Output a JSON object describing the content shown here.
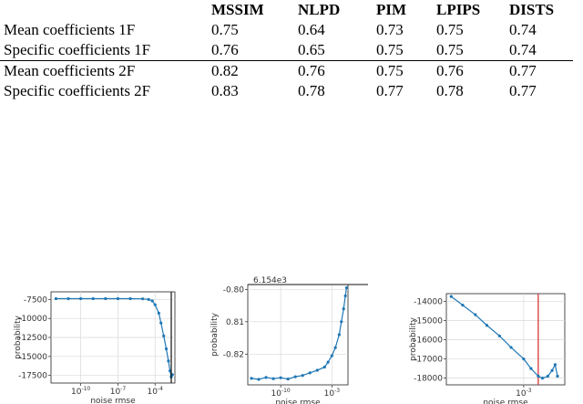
{
  "table": {
    "headers": [
      "",
      "MSSIM",
      "NLPD",
      "PIM",
      "LPIPS",
      "DISTS"
    ],
    "rows": [
      {
        "label": "Mean coefficients 1F",
        "values": [
          "0.75",
          "0.64",
          "0.73",
          "0.75",
          "0.74"
        ]
      },
      {
        "label": "Specific coefficients 1F",
        "values": [
          "0.76",
          "0.65",
          "0.75",
          "0.75",
          "0.74"
        ]
      },
      {
        "label": "Mean coefficients 2F",
        "values": [
          "0.82",
          "0.76",
          "0.75",
          "0.76",
          "0.77"
        ]
      },
      {
        "label": "Specific coefficients 2F",
        "values": [
          "0.83",
          "0.78",
          "0.77",
          "0.78",
          "0.77"
        ]
      }
    ]
  },
  "chart_data": [
    {
      "type": "scatter",
      "xlabel": "noise rmse",
      "ylabel": "probability",
      "xscale": "log",
      "grid": true,
      "xticks": [
        "10^-10",
        "10^-7",
        "10^-4"
      ],
      "yticks": [
        "-7500",
        "-10000",
        "-12500",
        "-15000",
        "-17500"
      ],
      "ylim": [
        -18500,
        -6500
      ],
      "series": [
        {
          "color": "#1f77b4",
          "x": [
            1e-12,
            1e-11,
            1e-10,
            1e-09,
            1e-08,
            1e-07,
            1e-06,
            1e-05,
            3e-05,
            6e-05,
            0.0001,
            0.0002,
            0.0003,
            0.0005,
            0.0008,
            0.0012,
            0.0016,
            0.002,
            0.0025
          ],
          "y": [
            -7400,
            -7400,
            -7400,
            -7400,
            -7400,
            -7400,
            -7400,
            -7420,
            -7500,
            -7700,
            -8200,
            -9300,
            -10600,
            -12300,
            -14000,
            -15600,
            -16900,
            -17700,
            -17400
          ]
        }
      ]
    },
    {
      "type": "scatter",
      "xlabel": "noise rmse",
      "ylabel": "probability",
      "xscale": "log",
      "grid": true,
      "offset_text": "6.154e3",
      "xticks": [
        "10^-10",
        "10^-3"
      ],
      "yticks": [
        "-0.80",
        "0.81",
        "-0.82"
      ],
      "ylim": [
        -0.8295,
        -0.7985
      ],
      "series": [
        {
          "color": "#1f77b4",
          "x": [
            1e-14,
            1e-13,
            1e-12,
            1e-11,
            1e-10,
            1e-09,
            1e-08,
            1e-07,
            1e-06,
            1e-05,
            0.0001,
            0.0003,
            0.001,
            0.003,
            0.01,
            0.02,
            0.04,
            0.07,
            0.1
          ],
          "y": [
            -0.8275,
            -0.8278,
            -0.8272,
            -0.8276,
            -0.8273,
            -0.8277,
            -0.827,
            -0.8266,
            -0.8258,
            -0.825,
            -0.824,
            -0.8225,
            -0.8205,
            -0.818,
            -0.814,
            -0.81,
            -0.806,
            -0.802,
            -0.7995
          ]
        }
      ]
    },
    {
      "type": "scatter",
      "xlabel": "noise rmse",
      "ylabel": "probability",
      "xscale": "log",
      "grid": true,
      "xticks": [
        "10^-3"
      ],
      "yticks": [
        "-14000",
        "-15000",
        "-16000",
        "-17000",
        "-18000"
      ],
      "ylim": [
        -18350,
        -13600
      ],
      "vline": {
        "x": 0.004,
        "color": "#d62728"
      },
      "series": [
        {
          "color": "#1f77b4",
          "x": [
            1e-06,
            3e-06,
            1e-05,
            3e-05,
            0.0001,
            0.0003,
            0.001,
            0.002,
            0.004,
            0.006,
            0.01,
            0.015,
            0.02,
            0.025
          ],
          "y": [
            -13750,
            -14200,
            -14700,
            -15250,
            -15800,
            -16400,
            -17000,
            -17500,
            -17900,
            -18000,
            -17900,
            -17600,
            -17300,
            -17900
          ]
        }
      ]
    }
  ]
}
